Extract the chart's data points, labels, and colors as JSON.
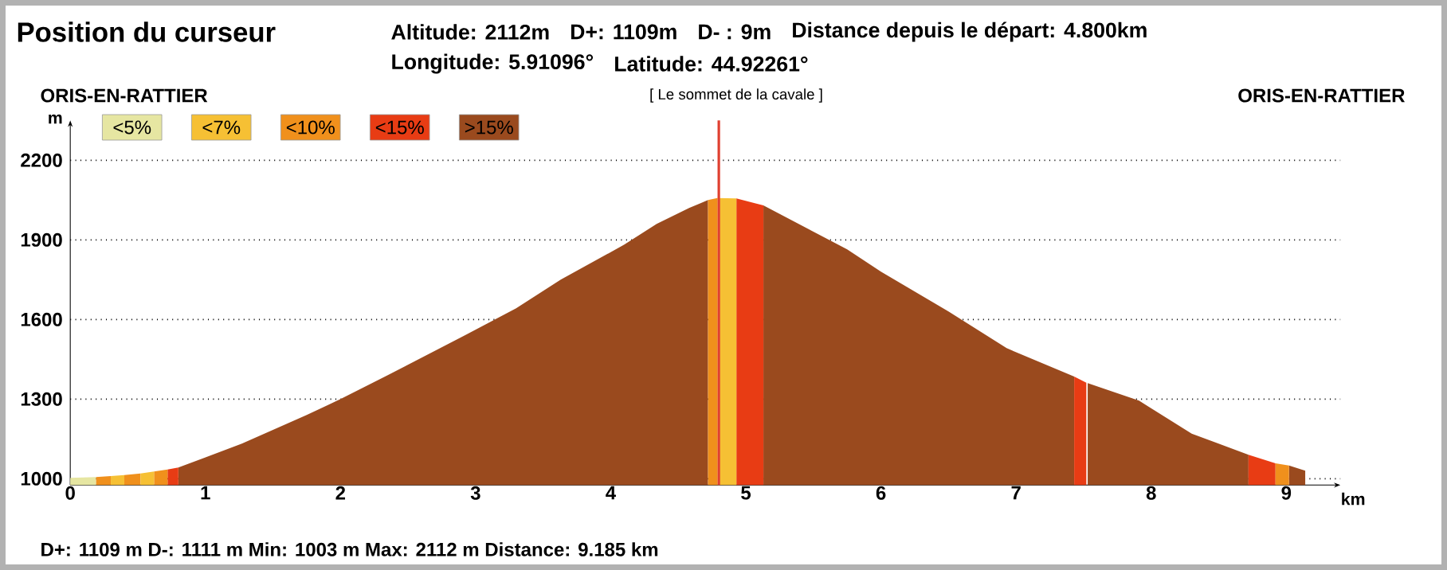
{
  "chart_data": {
    "type": "area",
    "title": "Position du curseur",
    "annotations": [
      "Altitude: **2112**m",
      "D+: **1109**m",
      "D- : **9**m",
      "Distance depuis le départ: **4.800**km",
      "Longitude: **5.91096°**",
      "Latitude: **44.92261°**",
      "ORIS-EN-RATTIER",
      "[ Le sommet de la cavale ]",
      "ORIS-EN-RATTIER",
      "D+: 1109 m   D-: 1111 m   Min: 1003 m   Max: 2112 m   Distance: 9.185 km"
    ],
    "xlabel": "km",
    "ylabel": "m",
    "series": [
      {
        "name": "<5%",
        "color": "#e6e6a2",
        "x": [
          0,
          0.19
        ],
        "values": [
          1003,
          1006
        ]
      },
      {
        "name": "<7%",
        "color": "#f6c034",
        "x": [
          0.3,
          0.4,
          null,
          0.52,
          0.62,
          null,
          4.79,
          4.93
        ],
        "values": [
          1010,
          1014,
          null,
          1020,
          1027,
          null,
          2058,
          2056
        ]
      },
      {
        "name": "<10%",
        "color": "#f0901c",
        "x": [
          0.19,
          0.3,
          null,
          0.4,
          0.52,
          null,
          0.62,
          0.72,
          null,
          4.72,
          4.79,
          null,
          8.92,
          9.02
        ],
        "values": [
          1006,
          1010,
          null,
          1014,
          1020,
          null,
          1027,
          1035,
          null,
          2050,
          2058,
          null,
          1058,
          1050
        ]
      },
      {
        "name": "<15%",
        "color": "#e83c14",
        "x": [
          0.72,
          0.8,
          null,
          4.93,
          5.13,
          null,
          7.43,
          7.52,
          null,
          8.72,
          8.92
        ],
        "values": [
          1035,
          1042,
          null,
          2056,
          2030,
          null,
          1385,
          1362,
          null,
          1090,
          1058
        ]
      },
      {
        "name": ">15%",
        "color": "#9a4a1e",
        "x": [
          0.8,
          1.27,
          1.75,
          2.0,
          2.35,
          2.92,
          3.3,
          3.63,
          4.1,
          4.34,
          4.58,
          4.72,
          null,
          5.13,
          5.75,
          6.0,
          6.5,
          6.93,
          7.43,
          null,
          7.53,
          7.91,
          8.3,
          8.72,
          null,
          9.02,
          9.14
        ],
        "values": [
          1042,
          1132,
          1240,
          1300,
          1390,
          1540,
          1642,
          1750,
          1882,
          1960,
          2020,
          2050,
          null,
          2030,
          1864,
          1780,
          1630,
          1492,
          1385,
          null,
          1360,
          1294,
          1170,
          1090,
          null,
          1050,
          1030
        ]
      }
    ],
    "xlim": [
      0,
      9.4
    ],
    "ylim": [
      976,
      2350
    ],
    "xticks": [
      0,
      1,
      2,
      3,
      4,
      5,
      6,
      7,
      8,
      9
    ],
    "yticks": [
      1000,
      1300,
      1600,
      1900,
      2200
    ],
    "grid": "y",
    "legend": "top left",
    "ref_lines": [
      {
        "axis": "x",
        "value": 4.8,
        "color": "#e04030"
      }
    ]
  }
}
